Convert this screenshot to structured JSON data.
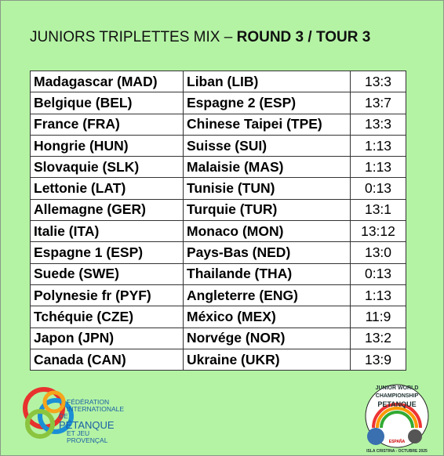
{
  "header": {
    "title": "JUNIORS TRIPLETTES MIX – ",
    "title_bold": "ROUND 3 / TOUR 3"
  },
  "table": {
    "rows": [
      [
        "Madagascar (MAD)",
        "Liban (LIB)",
        "13:3"
      ],
      [
        "Belgique (BEL)",
        "Espagne 2 (ESP)",
        "13:7"
      ],
      [
        "France (FRA)",
        "Chinese Taipei (TPE)",
        "13:3"
      ],
      [
        "Hongrie (HUN)",
        "Suisse (SUI)",
        "1:13"
      ],
      [
        "Slovaquie (SLK)",
        "Malaisie (MAS)",
        "1:13"
      ],
      [
        "Lettonie (LAT)",
        "Tunisie (TUN)",
        "0:13"
      ],
      [
        "Allemagne (GER)",
        "Turquie (TUR)",
        "13:1"
      ],
      [
        "Italie (ITA)",
        "Monaco (MON)",
        "13:12"
      ],
      [
        "Espagne 1 (ESP)",
        "Pays-Bas (NED)",
        "13:0"
      ],
      [
        "Suede (SWE)",
        "Thailande (THA)",
        "0:13"
      ],
      [
        "Polynesie fr (PYF)",
        "Angleterre (ENG)",
        "1:13"
      ],
      [
        "Tchéquie (CZE)",
        "México (MEX)",
        "11:9"
      ],
      [
        "Japon (JPN)",
        "Norvége (NOR)",
        "13:2"
      ],
      [
        "Canada (CAN)",
        "Ukraine (UKR)",
        "13:9"
      ]
    ]
  },
  "logos": {
    "left": [
      "FÉDÉRATION",
      "INTERNATIONALE",
      "DE",
      "PÉTANQUE",
      "ET JEU",
      "PROVENÇAL"
    ],
    "right": [
      "JUNIOR WORLD CHAMPIONSHIP",
      "PETANQUE",
      "ESPAÑA",
      "ISLA CRISTINA - OCTUBRE 2025"
    ]
  }
}
